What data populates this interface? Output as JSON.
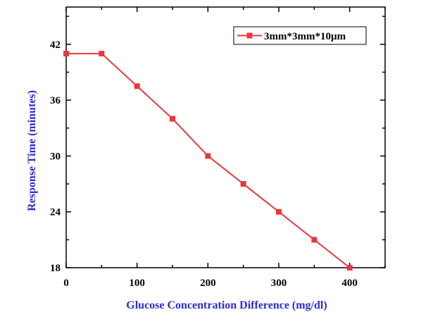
{
  "chart_data": {
    "type": "line",
    "xlabel": "Glucose Concentration Difference (mg/dl)",
    "ylabel": "Response Time (minutes)",
    "xlim": [
      0,
      450
    ],
    "ylim": [
      18,
      46
    ],
    "x_ticks": [
      0,
      100,
      200,
      300,
      400
    ],
    "y_ticks": [
      18,
      24,
      30,
      36,
      42
    ],
    "x": [
      0,
      50,
      100,
      150,
      200,
      250,
      300,
      350,
      400
    ],
    "series": [
      {
        "name": "3mm*3mm*10µm",
        "values": [
          41,
          41,
          37.5,
          34,
          30,
          27,
          24,
          21,
          18
        ],
        "marker": "square"
      }
    ],
    "legend_position": "top-right",
    "grid": false
  },
  "colors": {
    "series": "#e8373f",
    "axis_title": "#2b2bd4",
    "axes": "#000000"
  }
}
